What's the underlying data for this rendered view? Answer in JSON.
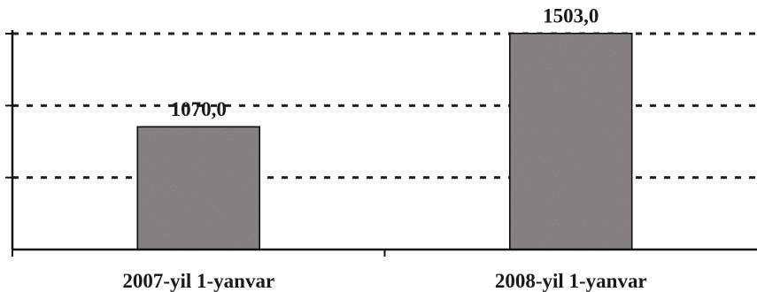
{
  "chart_data": {
    "type": "bar",
    "categories": [
      "2007-yil 1-yanvar",
      "2008-yil 1-yanvar"
    ],
    "values": [
      1070.0,
      1503.0
    ],
    "data_labels": [
      "1070,0",
      "1503,0"
    ],
    "title": "",
    "xlabel": "",
    "ylabel": "",
    "ylim": [
      500,
      1500
    ],
    "grid": true,
    "grid_style": "dotted",
    "legend": "none",
    "colors": {
      "bar_fill": "#8f8a8a",
      "bar_stroke": "#111111",
      "grid": "#222222",
      "axis": "#111111",
      "text": "#1a1a1a"
    }
  }
}
